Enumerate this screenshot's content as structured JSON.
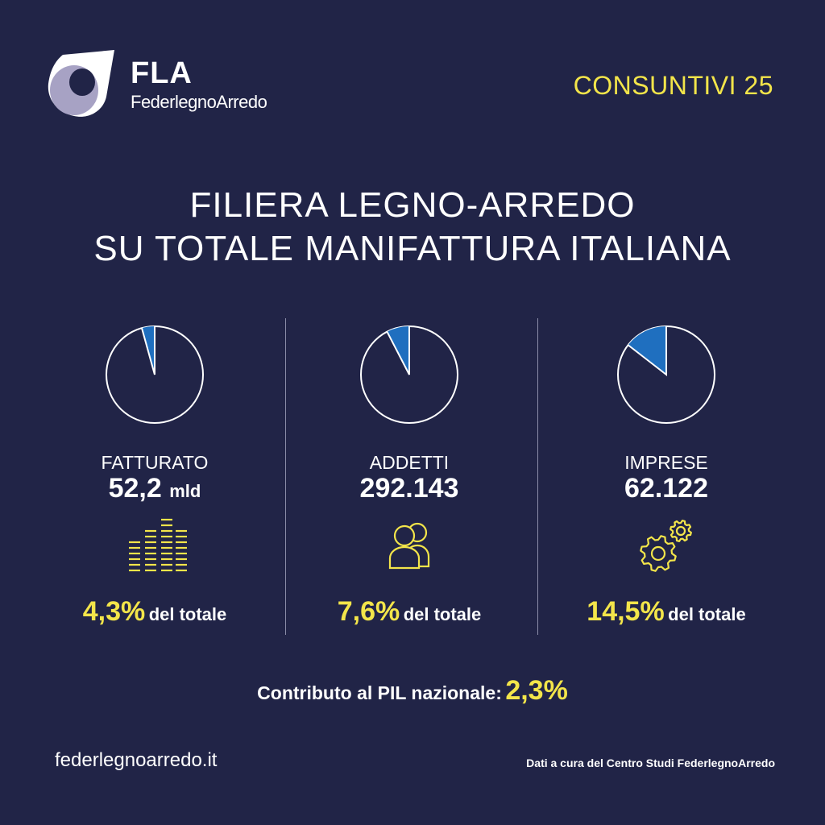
{
  "header": {
    "logo_short": "FLA",
    "logo_name": "FederlegnoArredo",
    "edition": "CONSUNTIVI 25"
  },
  "title": {
    "line1": "FILIERA LEGNO-ARREDO",
    "line2": "SU TOTALE MANIFATTURA ITALIANA"
  },
  "colors": {
    "background": "#212447",
    "accent_yellow": "#f3e54a",
    "slice_blue": "#1f6fbf",
    "text": "#ffffff"
  },
  "chart_data": [
    {
      "type": "pie",
      "label": "FATTURATO",
      "value": "52,2",
      "unit": "mld",
      "share_pct": 4.3,
      "share_text": "4,3%",
      "share_suffix": "del totale",
      "icon": "bar-chart-icon"
    },
    {
      "type": "pie",
      "label": "ADDETTI",
      "value": "292.143",
      "unit": "",
      "share_pct": 7.6,
      "share_text": "7,6%",
      "share_suffix": "del totale",
      "icon": "users-icon"
    },
    {
      "type": "pie",
      "label": "IMPRESE",
      "value": "62.122",
      "unit": "",
      "share_pct": 14.5,
      "share_text": "14,5%",
      "share_suffix": "del totale",
      "icon": "gears-icon"
    }
  ],
  "pil": {
    "label": "Contributo al PIL nazionale:",
    "value": "2,3%"
  },
  "footer": {
    "website": "federlegnoarredo.it",
    "credit": "Dati a cura del Centro Studi FederlegnoArredo"
  }
}
